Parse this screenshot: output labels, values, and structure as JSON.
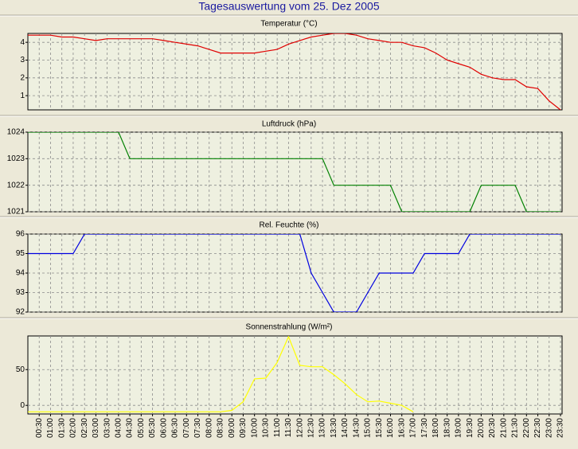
{
  "title": "Tagesauswertung vom 25. Dez 2005",
  "chart_data": [
    {
      "type": "line",
      "title": "Temperatur (°C)",
      "color": "#e00000",
      "grid": true,
      "ylim": [
        0.2,
        4.5
      ],
      "yticks": [
        1,
        2,
        3,
        4
      ],
      "values": [
        4.4,
        4.4,
        4.4,
        4.3,
        4.3,
        4.2,
        4.1,
        4.2,
        4.2,
        4.2,
        4.2,
        4.2,
        4.1,
        4.0,
        3.9,
        3.8,
        3.6,
        3.4,
        3.4,
        3.4,
        3.4,
        3.5,
        3.6,
        3.9,
        4.1,
        4.3,
        4.4,
        4.5,
        4.5,
        4.4,
        4.2,
        4.1,
        4.0,
        4.0,
        3.8,
        3.7,
        3.4,
        3.0,
        2.8,
        2.6,
        2.2,
        2.0,
        1.9,
        1.9,
        1.5,
        1.4,
        0.7,
        0.2
      ]
    },
    {
      "type": "line",
      "title": "Luftdruck (hPa)",
      "color": "#008000",
      "grid": true,
      "ylim": [
        1021,
        1024
      ],
      "yticks": [
        1021,
        1022,
        1023,
        1024
      ],
      "values": [
        1024,
        1024,
        1024,
        1024,
        1024,
        1024,
        1024,
        1024,
        1024,
        1023,
        1023,
        1023,
        1023,
        1023,
        1023,
        1023,
        1023,
        1023,
        1023,
        1023,
        1023,
        1023,
        1023,
        1023,
        1023,
        1023,
        1023,
        1022,
        1022,
        1022,
        1022,
        1022,
        1022,
        1021,
        1021,
        1021,
        1021,
        1021,
        1021,
        1021,
        1022,
        1022,
        1022,
        1022,
        1021,
        1021,
        1021,
        1021
      ]
    },
    {
      "type": "line",
      "title": "Rel. Feuchte (%)",
      "color": "#0000e0",
      "grid": true,
      "ylim": [
        92,
        96
      ],
      "yticks": [
        92,
        93,
        94,
        95,
        96
      ],
      "values": [
        95,
        95,
        95,
        95,
        95,
        96,
        96,
        96,
        96,
        96,
        96,
        96,
        96,
        96,
        96,
        96,
        96,
        96,
        96,
        96,
        96,
        96,
        96,
        96,
        96,
        94,
        93,
        92,
        92,
        92,
        93,
        94,
        94,
        94,
        94,
        95,
        95,
        95,
        95,
        96,
        96,
        96,
        96,
        96,
        96,
        96,
        96,
        96
      ]
    },
    {
      "type": "line",
      "title": "Sonnenstrahlung (W/m²)",
      "color": "#ffff00",
      "grid": true,
      "ylim": [
        -12,
        97
      ],
      "yticks": [
        0,
        50
      ],
      "categories": [
        null,
        "00:30",
        "01:00",
        "01:30",
        "02:00",
        "02:30",
        "03:00",
        "03:30",
        "04:00",
        "04:30",
        "05:00",
        "05:30",
        "06:00",
        "06:30",
        "07:00",
        "07:30",
        "08:00",
        "08:30",
        "09:00",
        "09:30",
        "10:00",
        "10:30",
        "11:00",
        "11:30",
        "12:00",
        "12:30",
        "13:00",
        "13:30",
        "14:00",
        "14:30",
        "15:00",
        "15:30",
        "16:00",
        "16:30",
        "17:00",
        "17:30",
        "18:00",
        "18:30",
        "19:00",
        "19:30",
        "20:00",
        "20:30",
        "21:00",
        "21:30",
        "22:00",
        "22:30",
        "23:00",
        "23:30"
      ],
      "values": [
        -9,
        -9,
        -9,
        -9,
        -9,
        -9,
        -9,
        -9,
        -9,
        -9,
        -9,
        -9,
        -9,
        -9,
        -9,
        -9,
        -9,
        -9,
        -7,
        5,
        37,
        38,
        60,
        96,
        56,
        54,
        54,
        43,
        30,
        15,
        5,
        6,
        3,
        0,
        -9,
        null,
        null,
        null,
        null,
        null,
        null,
        null,
        null,
        null,
        null,
        null,
        null,
        null
      ]
    }
  ]
}
